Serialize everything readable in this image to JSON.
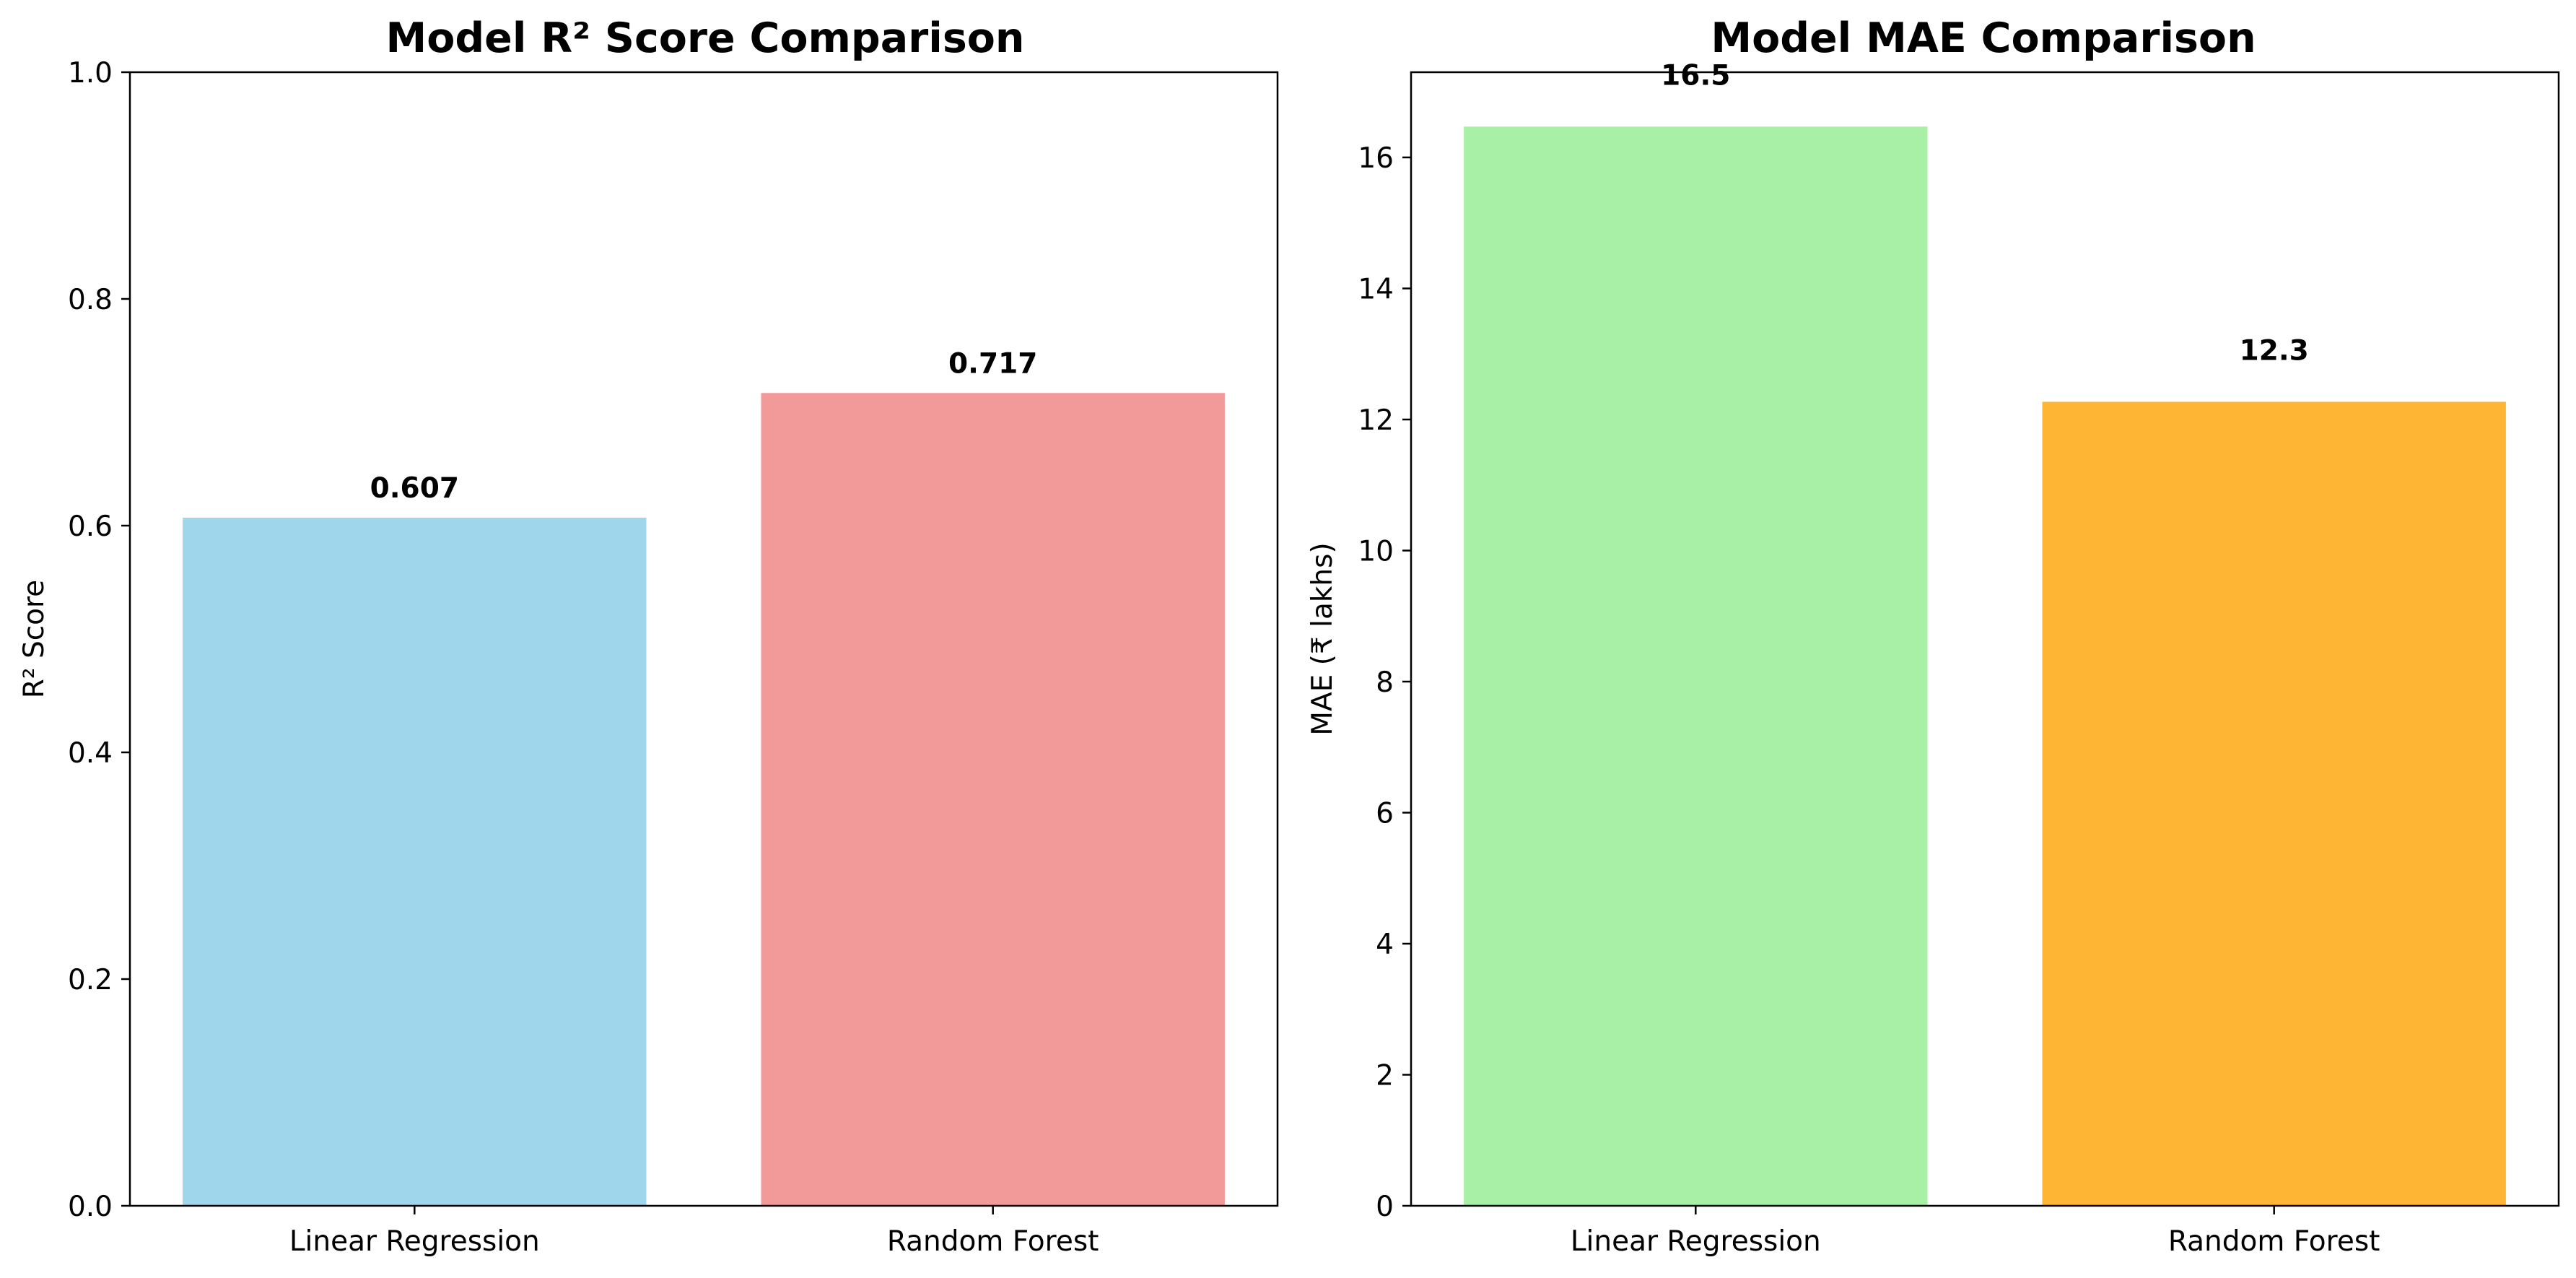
{
  "chart_data": [
    {
      "type": "bar",
      "title": "Model R² Score Comparison",
      "xlabel": "",
      "ylabel": "R² Score",
      "categories": [
        "Linear Regression",
        "Random Forest"
      ],
      "values": [
        0.607,
        0.717
      ],
      "value_labels": [
        "0.607",
        "0.717"
      ],
      "colors": [
        "#a0d6ec",
        "#f29a9a"
      ],
      "ylim": [
        0,
        1.0
      ],
      "yticks": [
        0.0,
        0.2,
        0.4,
        0.6,
        0.8,
        1.0
      ],
      "ytick_labels": [
        "0.0",
        "0.2",
        "0.4",
        "0.6",
        "0.8",
        "1.0"
      ],
      "grid": false,
      "legend": "none"
    },
    {
      "type": "bar",
      "title": "Model MAE Comparison",
      "xlabel": "",
      "ylabel": "MAE (₹ lakhs)",
      "categories": [
        "Linear Regression",
        "Random Forest"
      ],
      "values": [
        16.47,
        12.27
      ],
      "value_labels": [
        "16.5",
        "12.3"
      ],
      "colors": [
        "#a8f0a6",
        "#fdb533"
      ],
      "ylim": [
        0,
        17.3
      ],
      "yticks": [
        0,
        2,
        4,
        6,
        8,
        10,
        12,
        14,
        16
      ],
      "ytick_labels": [
        "0",
        "2",
        "4",
        "6",
        "8",
        "10",
        "12",
        "14",
        "16"
      ],
      "grid": false,
      "legend": "none"
    }
  ]
}
